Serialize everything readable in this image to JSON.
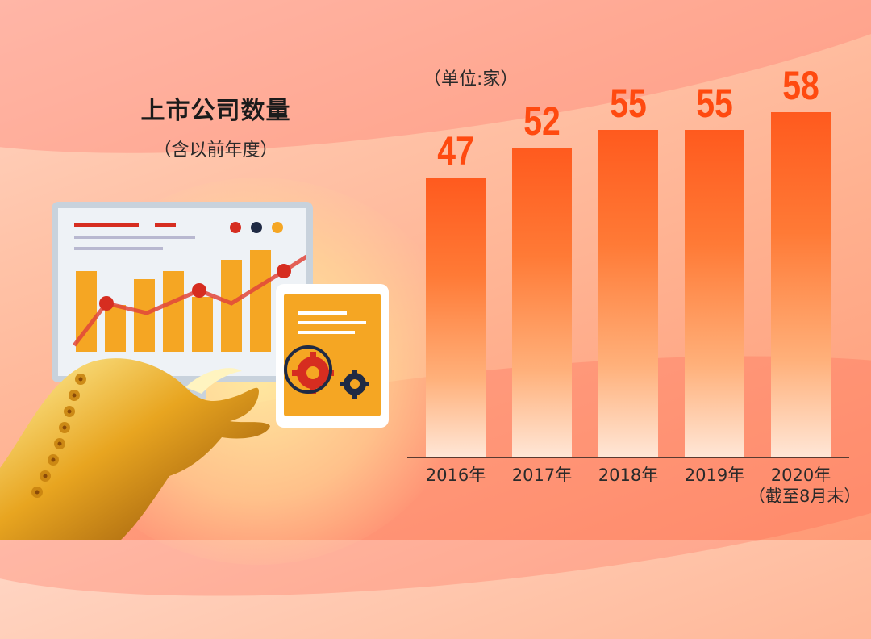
{
  "title": "上市公司数量",
  "subtitle": "（含以前年度）",
  "unit_label": "（单位:家）",
  "chart_data": {
    "type": "bar",
    "categories": [
      "2016年",
      "2017年",
      "2018年",
      "2019年",
      "2020年"
    ],
    "category_notes": [
      "",
      "",
      "",
      "",
      "（截至8月末）"
    ],
    "values": [
      47,
      52,
      55,
      55,
      58
    ],
    "value_labels": [
      "47",
      "52",
      "55",
      "55",
      "58"
    ],
    "title": "上市公司数量",
    "subtitle": "（含以前年度）",
    "unit": "（单位:家）",
    "xlabel": "",
    "ylabel": "",
    "grid": false,
    "legend": "none",
    "colors": {
      "bar_top": "#ff5a1e",
      "bar_bottom": "#ffe6d6",
      "label": "#ff4a10"
    }
  },
  "illustration": {
    "icons": [
      "monitor-chart-icon",
      "tablet-icon",
      "gear-icon",
      "magnifier-icon",
      "golden-bull-icon"
    ],
    "colors": {
      "accent_orange": "#f5a623",
      "accent_red": "#d62d20",
      "navy": "#1f2a44"
    }
  }
}
